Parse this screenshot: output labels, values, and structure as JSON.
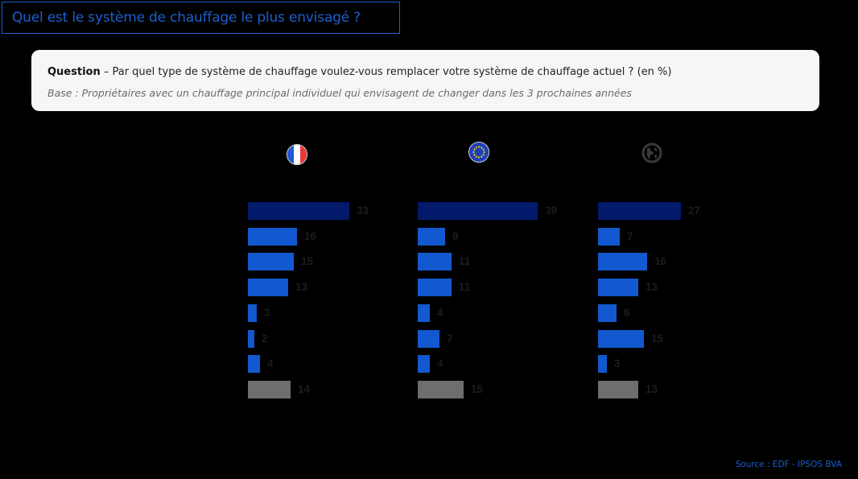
{
  "title": "Quel est le système de chauffage le plus envisagé ?",
  "question": {
    "label": "Question",
    "text": " – Par quel type de système de chauffage voulez-vous remplacer votre système de chauffage actuel ? (en %)",
    "base": "Base : Propriétaires avec un chauffage principal individuel qui envisagent de changer dans les 3 prochaines années"
  },
  "source": "Source : EDF - IPSOS BVA",
  "colors": {
    "accent": "#1c5fcf",
    "top_bar": "#021a6b",
    "bar": "#1259cf",
    "other_bar": "#6e6e6e",
    "label": "#1c1c1c"
  },
  "chart_data": {
    "type": "bar",
    "orientation": "horizontal",
    "title": "Quel est le système de chauffage le plus envisagé ?",
    "xlabel": "",
    "ylabel": "",
    "unit": "%",
    "categories": [
      "cat1",
      "cat2",
      "cat3",
      "cat4",
      "cat5",
      "cat6",
      "cat7",
      "cat8"
    ],
    "category_labels_visible": false,
    "series": [
      {
        "name": "France",
        "icon": "france-flag-icon",
        "values": [
          33,
          16,
          15,
          13,
          3,
          2,
          4,
          14
        ]
      },
      {
        "name": "Europe",
        "icon": "eu-flag-icon",
        "values": [
          39,
          9,
          11,
          11,
          4,
          7,
          4,
          15
        ]
      },
      {
        "name": "Monde",
        "icon": "globe-icon",
        "values": [
          27,
          7,
          16,
          13,
          6,
          15,
          3,
          13
        ]
      }
    ],
    "grid": false,
    "legend": "icons above columns"
  }
}
